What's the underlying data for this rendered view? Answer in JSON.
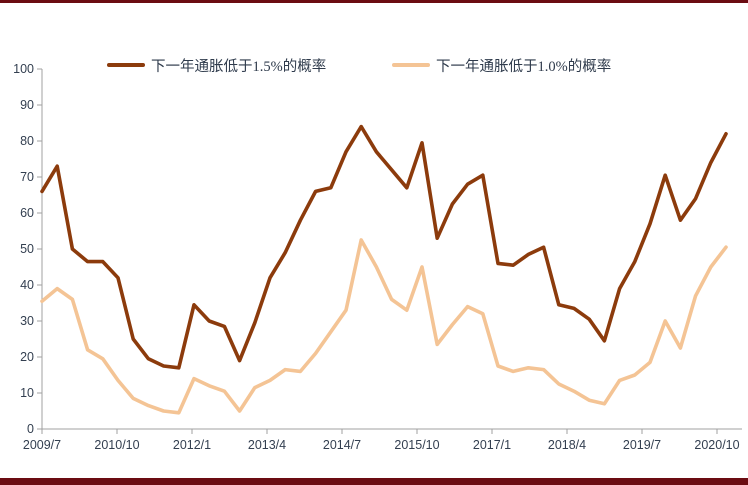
{
  "page": {
    "background_color": "#ffffff",
    "top_bar_color": "#6b0c12",
    "bottom_bar_color": "#6b0c12",
    "axis_color": "#a0a0a0",
    "label_color": "#333f50"
  },
  "chart_data": {
    "type": "line",
    "title": "",
    "xlabel": "",
    "ylabel": "",
    "ylim": [
      0,
      100
    ],
    "y_ticks": [
      0,
      10,
      20,
      30,
      40,
      50,
      60,
      70,
      80,
      90,
      100
    ],
    "grid": false,
    "legend_position": "top",
    "x_tick_labels": [
      "2009/7",
      "2010/10",
      "2012/1",
      "2013/4",
      "2014/7",
      "2015/10",
      "2017/1",
      "2018/4",
      "2019/7",
      "2020/10"
    ],
    "categories": [
      "2009/7",
      "2009/10",
      "2010/1",
      "2010/4",
      "2010/7",
      "2010/10",
      "2011/1",
      "2011/4",
      "2011/7",
      "2011/10",
      "2012/1",
      "2012/4",
      "2012/7",
      "2012/10",
      "2013/1",
      "2013/4",
      "2013/7",
      "2013/10",
      "2014/1",
      "2014/4",
      "2014/7",
      "2014/10",
      "2015/1",
      "2015/4",
      "2015/7",
      "2015/10",
      "2016/1",
      "2016/4",
      "2016/7",
      "2016/10",
      "2017/1",
      "2017/4",
      "2017/7",
      "2017/10",
      "2018/1",
      "2018/4",
      "2018/7",
      "2018/10",
      "2019/1",
      "2019/4",
      "2019/7",
      "2019/10",
      "2020/1",
      "2020/4",
      "2020/7",
      "2020/10"
    ],
    "series": [
      {
        "name": "下一年通胀低于1.5%的概率",
        "color": "#8c3b0c",
        "values": [
          66,
          73,
          50,
          46.5,
          46.5,
          42,
          25,
          19.5,
          17.5,
          17,
          34.5,
          30,
          28.5,
          19,
          29.5,
          42,
          49,
          58,
          66,
          67,
          77,
          84,
          77,
          72,
          67,
          79.5,
          53,
          62.5,
          68,
          70.5,
          46,
          45.5,
          48.5,
          50.5,
          34.5,
          33.5,
          30.5,
          24.5,
          39,
          46.5,
          57,
          70.5,
          58,
          64,
          74,
          82
        ]
      },
      {
        "name": "下一年通胀低于1.0%的概率",
        "color": "#f4c495",
        "values": [
          35.5,
          39,
          36,
          22,
          19.5,
          13.5,
          8.5,
          6.5,
          5,
          4.5,
          14,
          12,
          10.5,
          5,
          11.5,
          13.5,
          16.5,
          16,
          21,
          27,
          33,
          52.5,
          45,
          36,
          33,
          45,
          23.5,
          29,
          34,
          32,
          17.5,
          16,
          17,
          16.5,
          12.5,
          10.5,
          8,
          7,
          13.5,
          15,
          18.5,
          30,
          22.5,
          37,
          45,
          50.5
        ]
      }
    ]
  }
}
